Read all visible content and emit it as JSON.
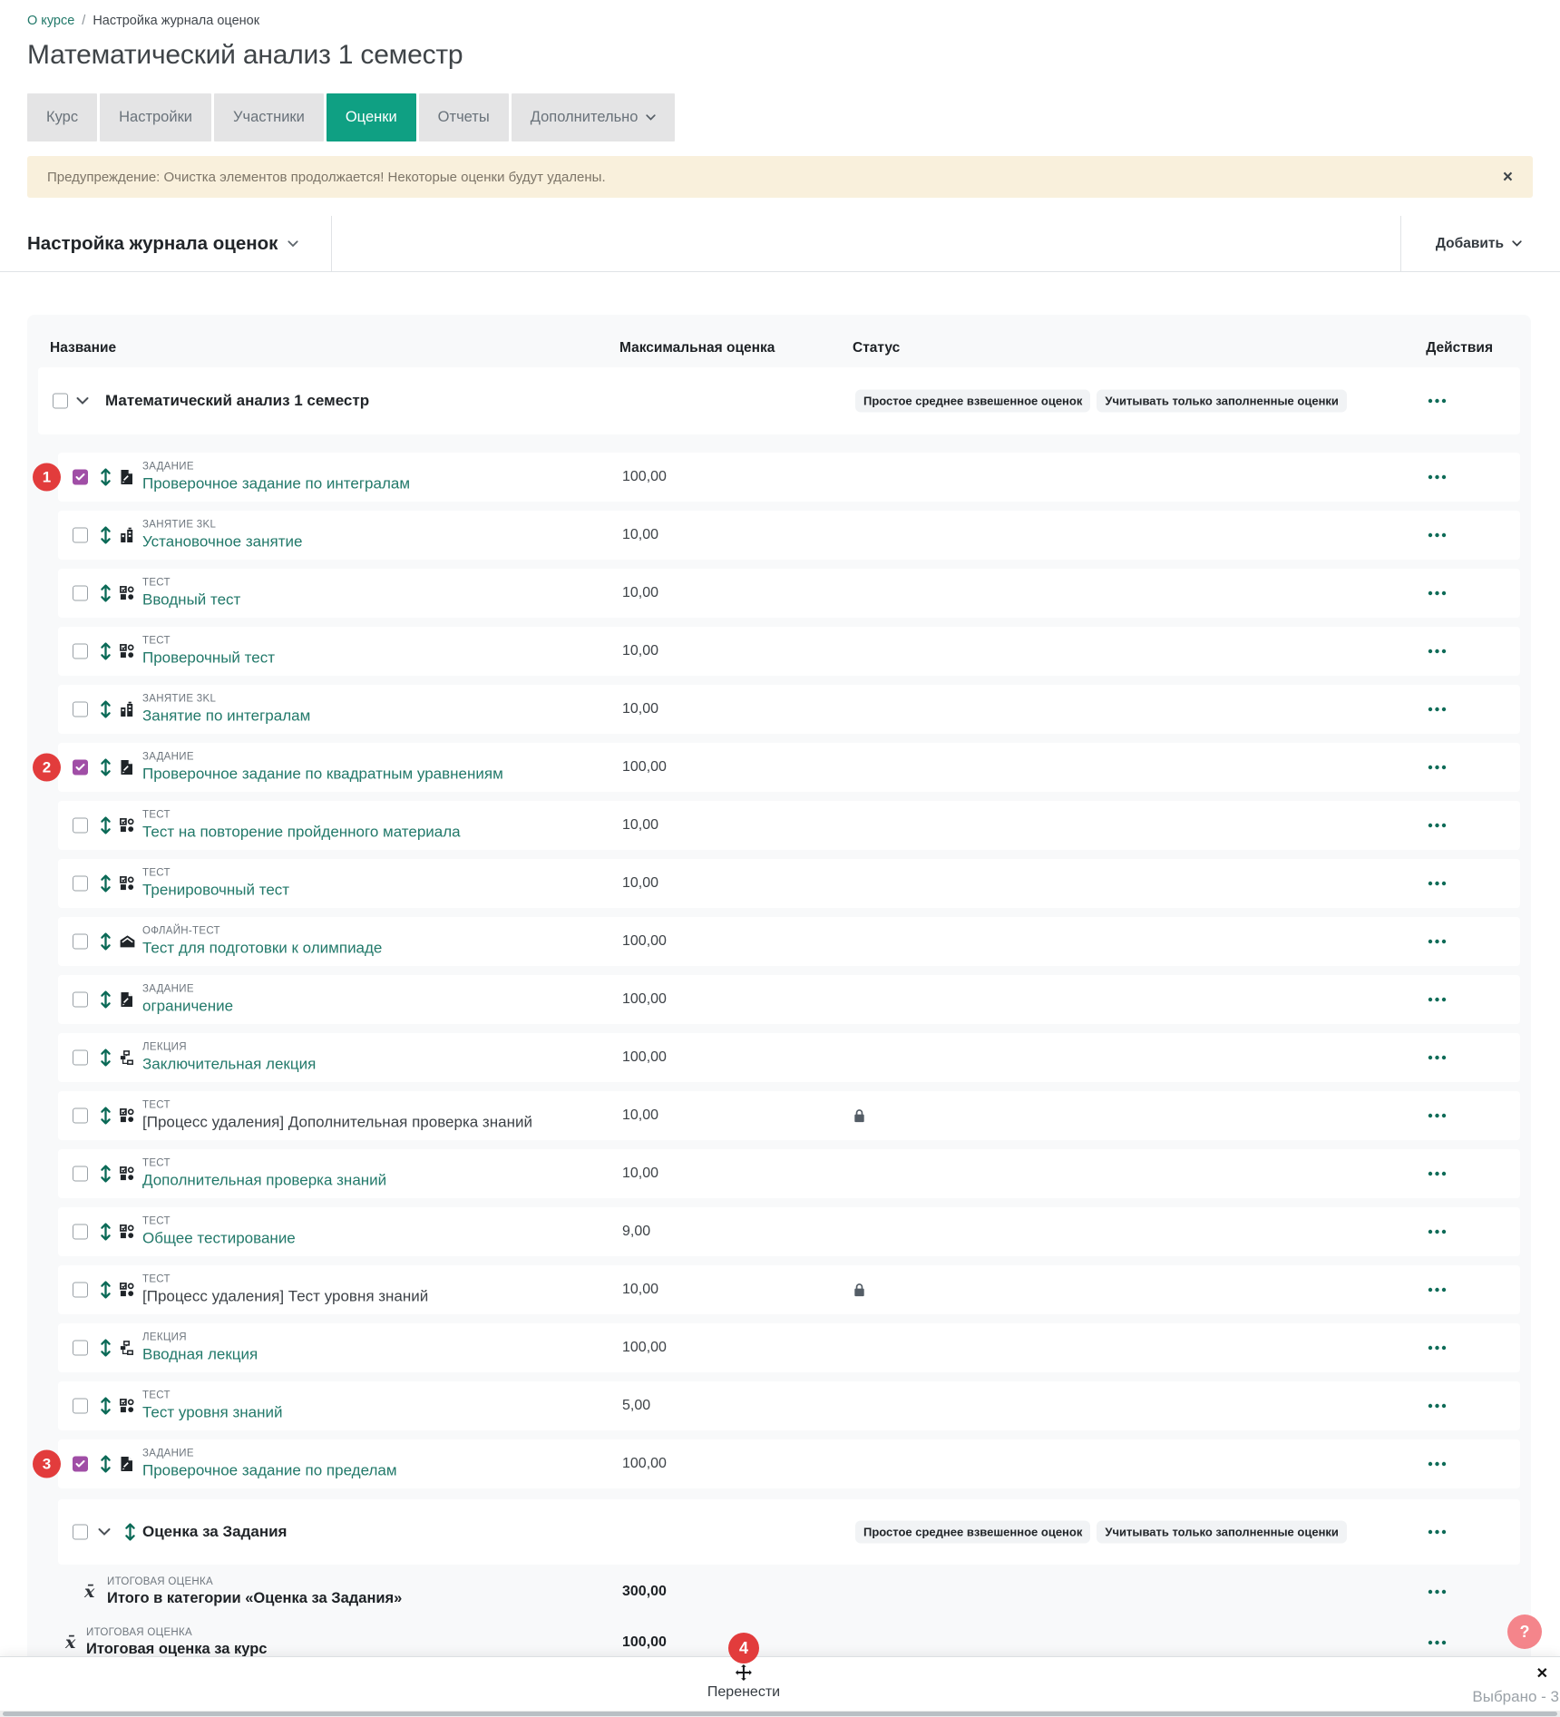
{
  "colors": {
    "accent_green": "#0fa083",
    "link_teal": "#22796a",
    "icon_teal": "#0b6a57",
    "checked_checkbox": "#a04ea6",
    "marker_red": "#e23c3c",
    "warning_bg": "#f9f0dc",
    "help_pink": "#f4858b",
    "table_bg": "#f8f9fa"
  },
  "breadcrumb": {
    "link": "О курсе",
    "separator": "/",
    "current": "Настройка журнала оценок"
  },
  "page_title": "Математический анализ 1 семестр",
  "tabs": [
    {
      "key": "course",
      "label": "Курс",
      "active": false,
      "has_dropdown": false
    },
    {
      "key": "settings",
      "label": "Настройки",
      "active": false,
      "has_dropdown": false
    },
    {
      "key": "participants",
      "label": "Участники",
      "active": false,
      "has_dropdown": false
    },
    {
      "key": "grades",
      "label": "Оценки",
      "active": true,
      "has_dropdown": false
    },
    {
      "key": "reports",
      "label": "Отчеты",
      "active": false,
      "has_dropdown": false
    },
    {
      "key": "more",
      "label": "Дополнительно",
      "active": false,
      "has_dropdown": true
    }
  ],
  "warning": {
    "text": "Предупреждение: Очистка элементов продолжается! Некоторые оценки будут удалены.",
    "close_icon": "×"
  },
  "toolbar": {
    "heading": "Настройка журнала оценок",
    "add_label": "Добавить"
  },
  "table": {
    "headers": {
      "name": "Название",
      "max_grade": "Максимальная оценка",
      "status": "Статус",
      "actions": "Действия"
    },
    "root_category": {
      "name": "Математический анализ 1 семестр",
      "status_badges": [
        "Простое среднее взвешенное оценок",
        "Учитывать только заполненные оценки"
      ]
    },
    "items": [
      {
        "type_label": "ЗАДАНИЕ",
        "icon": "assignment-icon",
        "name": "Проверочное задание по интегралам",
        "max_grade": "100,00",
        "checked": true,
        "marker": "1",
        "status_locked": false,
        "is_link": true
      },
      {
        "type_label": "ЗАНЯТИЕ 3KL",
        "icon": "lesson3kl-icon",
        "name": "Установочное занятие",
        "max_grade": "10,00",
        "checked": false,
        "marker": null,
        "status_locked": false,
        "is_link": true
      },
      {
        "type_label": "ТЕСТ",
        "icon": "quiz-icon",
        "name": "Вводный тест",
        "max_grade": "10,00",
        "checked": false,
        "marker": null,
        "status_locked": false,
        "is_link": true
      },
      {
        "type_label": "ТЕСТ",
        "icon": "quiz-icon",
        "name": "Проверочный тест",
        "max_grade": "10,00",
        "checked": false,
        "marker": null,
        "status_locked": false,
        "is_link": true
      },
      {
        "type_label": "ЗАНЯТИЕ 3KL",
        "icon": "lesson3kl-icon",
        "name": "Занятие по интегралам",
        "max_grade": "10,00",
        "checked": false,
        "marker": null,
        "status_locked": false,
        "is_link": true
      },
      {
        "type_label": "ЗАДАНИЕ",
        "icon": "assignment-icon",
        "name": "Проверочное задание по квадратным уравнениям",
        "max_grade": "100,00",
        "checked": true,
        "marker": "2",
        "status_locked": false,
        "is_link": true
      },
      {
        "type_label": "ТЕСТ",
        "icon": "quiz-icon",
        "name": "Тест на повторение пройденного материала",
        "max_grade": "10,00",
        "checked": false,
        "marker": null,
        "status_locked": false,
        "is_link": true
      },
      {
        "type_label": "ТЕСТ",
        "icon": "quiz-icon",
        "name": "Тренировочный тест",
        "max_grade": "10,00",
        "checked": false,
        "marker": null,
        "status_locked": false,
        "is_link": true
      },
      {
        "type_label": "ОФЛАЙН-ТЕСТ",
        "icon": "offlinequiz-icon",
        "name": "Тест для подготовки к олимпиаде",
        "max_grade": "100,00",
        "checked": false,
        "marker": null,
        "status_locked": false,
        "is_link": true
      },
      {
        "type_label": "ЗАДАНИЕ",
        "icon": "assignment-icon",
        "name": "ограничение",
        "max_grade": "100,00",
        "checked": false,
        "marker": null,
        "status_locked": false,
        "is_link": true
      },
      {
        "type_label": "ЛЕКЦИЯ",
        "icon": "lecture-icon",
        "name": "Заключительная лекция",
        "max_grade": "100,00",
        "checked": false,
        "marker": null,
        "status_locked": false,
        "is_link": true
      },
      {
        "type_label": "ТЕСТ",
        "icon": "quiz-icon",
        "name": "[Процесс удаления] Дополнительная проверка знаний",
        "max_grade": "10,00",
        "checked": false,
        "marker": null,
        "status_locked": true,
        "is_link": false
      },
      {
        "type_label": "ТЕСТ",
        "icon": "quiz-icon",
        "name": "Дополнительная проверка знаний",
        "max_grade": "10,00",
        "checked": false,
        "marker": null,
        "status_locked": false,
        "is_link": true
      },
      {
        "type_label": "ТЕСТ",
        "icon": "quiz-icon",
        "name": "Общее тестирование",
        "max_grade": "9,00",
        "checked": false,
        "marker": null,
        "status_locked": false,
        "is_link": true
      },
      {
        "type_label": "ТЕСТ",
        "icon": "quiz-icon",
        "name": "[Процесс удаления] Тест уровня знаний",
        "max_grade": "10,00",
        "checked": false,
        "marker": null,
        "status_locked": true,
        "is_link": false
      },
      {
        "type_label": "ЛЕКЦИЯ",
        "icon": "lecture-icon",
        "name": "Вводная лекция",
        "max_grade": "100,00",
        "checked": false,
        "marker": null,
        "status_locked": false,
        "is_link": true
      },
      {
        "type_label": "ТЕСТ",
        "icon": "quiz-icon",
        "name": "Тест уровня знаний",
        "max_grade": "5,00",
        "checked": false,
        "marker": null,
        "status_locked": false,
        "is_link": true
      },
      {
        "type_label": "ЗАДАНИЕ",
        "icon": "assignment-icon",
        "name": "Проверочное задание по пределам",
        "max_grade": "100,00",
        "checked": true,
        "marker": "3",
        "status_locked": false,
        "is_link": true
      }
    ],
    "sub_category": {
      "name": "Оценка за Задания",
      "status_badges": [
        "Простое среднее взвешенное оценок",
        "Учитывать только заполненные оценки"
      ]
    },
    "totals": [
      {
        "type_label": "ИТОГОВАЯ ОЦЕНКА",
        "icon": "mean-icon",
        "name": "Итого в категории «Оценка за Задания»",
        "max_grade": "300,00",
        "indent": 2
      },
      {
        "type_label": "ИТОГОВАЯ ОЦЕНКА",
        "icon": "mean-icon",
        "name": "Итоговая оценка за курс",
        "max_grade": "100,00",
        "indent": 1
      }
    ]
  },
  "footer": {
    "marker": "4",
    "move_label": "Перенести",
    "selected_label": "Выбрано - 3",
    "close_icon": "✕"
  },
  "help_button": {
    "label": "?"
  }
}
